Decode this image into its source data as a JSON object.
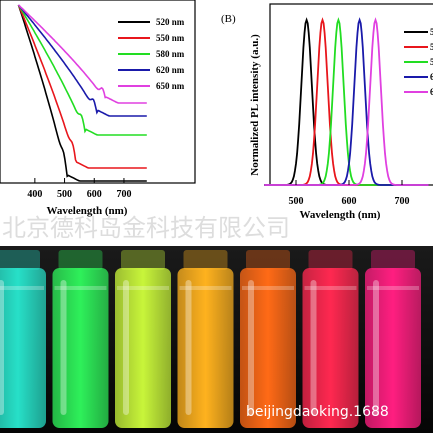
{
  "panel_a": {
    "x_ticks": [
      "400",
      "500",
      "600",
      "700"
    ],
    "xlabel": "Wavelength (nm)",
    "legend": [
      {
        "label": "520 nm",
        "color": "#000000"
      },
      {
        "label": "550 nm",
        "color": "#e8161c"
      },
      {
        "label": "580 nm",
        "color": "#22dd22"
      },
      {
        "label": "620 nm",
        "color": "#1a1aaa"
      },
      {
        "label": "650 nm",
        "color": "#e040e0"
      }
    ]
  },
  "panel_b": {
    "label": "(B)",
    "ylabel": "Normalized PL intensity (a.u.)",
    "xlabel": "Wavelength (nm)",
    "x_ticks": [
      "500",
      "600",
      "700"
    ],
    "legend_partial": [
      "5",
      "5",
      "5",
      "6",
      "6"
    ],
    "peaks_nm": [
      520,
      550,
      580,
      620,
      650
    ]
  },
  "watermark_top": "北京德科岛金科技有限公司",
  "watermark_bottom": "beijingdaoking.1688",
  "vials": [
    {
      "color": "#27e0c8"
    },
    {
      "color": "#2ef05a"
    },
    {
      "color": "#c8f53a"
    },
    {
      "color": "#ffb21e"
    },
    {
      "color": "#ff6a16"
    },
    {
      "color": "#ff2850"
    },
    {
      "color": "#ff1e80"
    }
  ]
}
